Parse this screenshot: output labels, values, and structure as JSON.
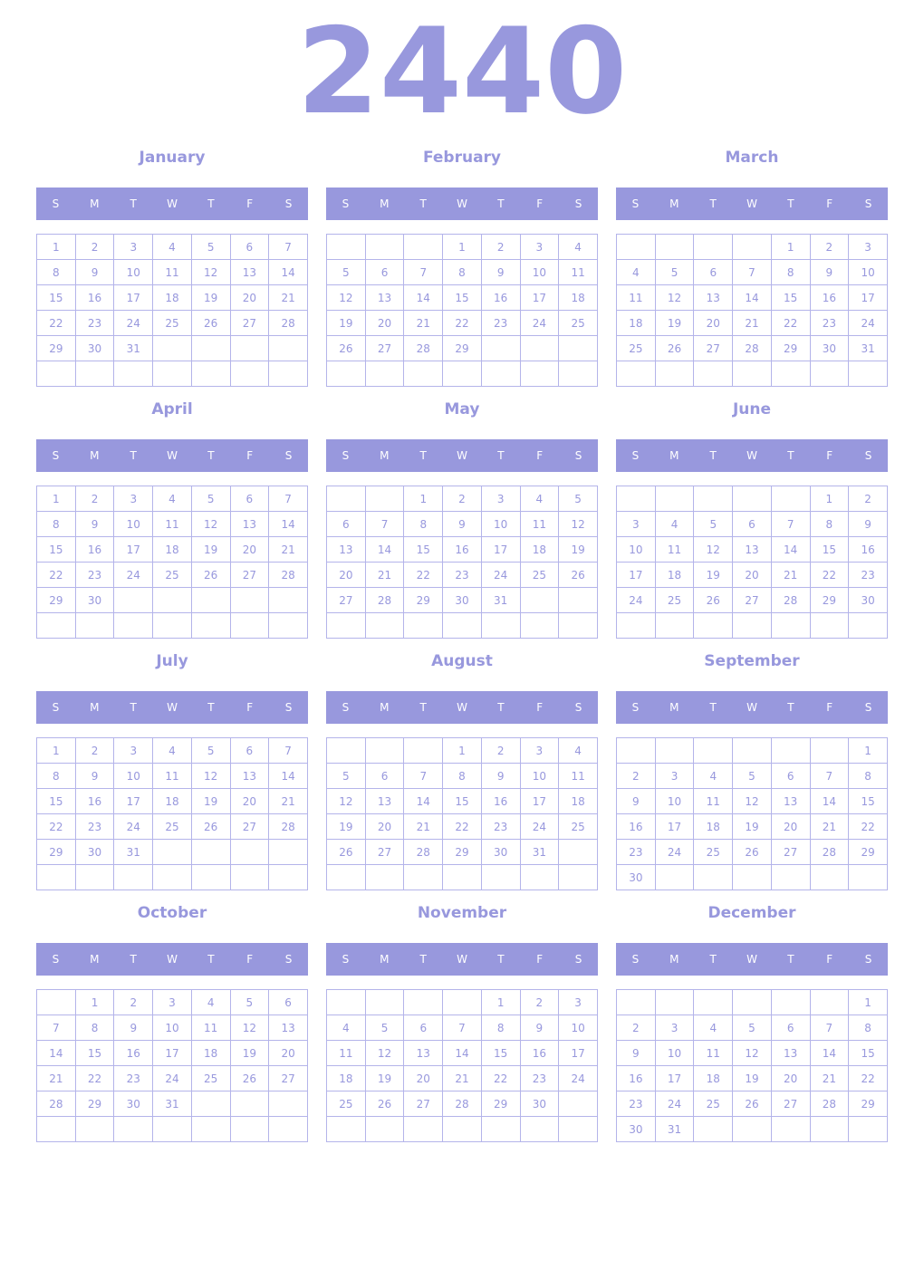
{
  "year": "2440",
  "weekday_labels": [
    "S",
    "M",
    "T",
    "W",
    "T",
    "F",
    "S"
  ],
  "colors": {
    "accent": "#9898dd",
    "border": "#b4b4ea",
    "header_text": "#ffffff"
  },
  "months": [
    {
      "name": "January",
      "weeks": [
        [
          1,
          2,
          3,
          4,
          5,
          6,
          7
        ],
        [
          8,
          9,
          10,
          11,
          12,
          13,
          14
        ],
        [
          15,
          16,
          17,
          18,
          19,
          20,
          21
        ],
        [
          22,
          23,
          24,
          25,
          26,
          27,
          28
        ],
        [
          29,
          30,
          31,
          null,
          null,
          null,
          null
        ],
        [
          null,
          null,
          null,
          null,
          null,
          null,
          null
        ]
      ]
    },
    {
      "name": "February",
      "weeks": [
        [
          null,
          null,
          null,
          1,
          2,
          3,
          4
        ],
        [
          5,
          6,
          7,
          8,
          9,
          10,
          11
        ],
        [
          12,
          13,
          14,
          15,
          16,
          17,
          18
        ],
        [
          19,
          20,
          21,
          22,
          23,
          24,
          25
        ],
        [
          26,
          27,
          28,
          29,
          null,
          null,
          null
        ],
        [
          null,
          null,
          null,
          null,
          null,
          null,
          null
        ]
      ]
    },
    {
      "name": "March",
      "weeks": [
        [
          null,
          null,
          null,
          null,
          1,
          2,
          3
        ],
        [
          4,
          5,
          6,
          7,
          8,
          9,
          10
        ],
        [
          11,
          12,
          13,
          14,
          15,
          16,
          17
        ],
        [
          18,
          19,
          20,
          21,
          22,
          23,
          24
        ],
        [
          25,
          26,
          27,
          28,
          29,
          30,
          31
        ],
        [
          null,
          null,
          null,
          null,
          null,
          null,
          null
        ]
      ]
    },
    {
      "name": "April",
      "weeks": [
        [
          1,
          2,
          3,
          4,
          5,
          6,
          7
        ],
        [
          8,
          9,
          10,
          11,
          12,
          13,
          14
        ],
        [
          15,
          16,
          17,
          18,
          19,
          20,
          21
        ],
        [
          22,
          23,
          24,
          25,
          26,
          27,
          28
        ],
        [
          29,
          30,
          null,
          null,
          null,
          null,
          null
        ],
        [
          null,
          null,
          null,
          null,
          null,
          null,
          null
        ]
      ]
    },
    {
      "name": "May",
      "weeks": [
        [
          null,
          null,
          1,
          2,
          3,
          4,
          5
        ],
        [
          6,
          7,
          8,
          9,
          10,
          11,
          12
        ],
        [
          13,
          14,
          15,
          16,
          17,
          18,
          19
        ],
        [
          20,
          21,
          22,
          23,
          24,
          25,
          26
        ],
        [
          27,
          28,
          29,
          30,
          31,
          null,
          null
        ],
        [
          null,
          null,
          null,
          null,
          null,
          null,
          null
        ]
      ]
    },
    {
      "name": "June",
      "weeks": [
        [
          null,
          null,
          null,
          null,
          null,
          1,
          2
        ],
        [
          3,
          4,
          5,
          6,
          7,
          8,
          9
        ],
        [
          10,
          11,
          12,
          13,
          14,
          15,
          16
        ],
        [
          17,
          18,
          19,
          20,
          21,
          22,
          23
        ],
        [
          24,
          25,
          26,
          27,
          28,
          29,
          30
        ],
        [
          null,
          null,
          null,
          null,
          null,
          null,
          null
        ]
      ]
    },
    {
      "name": "July",
      "weeks": [
        [
          1,
          2,
          3,
          4,
          5,
          6,
          7
        ],
        [
          8,
          9,
          10,
          11,
          12,
          13,
          14
        ],
        [
          15,
          16,
          17,
          18,
          19,
          20,
          21
        ],
        [
          22,
          23,
          24,
          25,
          26,
          27,
          28
        ],
        [
          29,
          30,
          31,
          null,
          null,
          null,
          null
        ],
        [
          null,
          null,
          null,
          null,
          null,
          null,
          null
        ]
      ]
    },
    {
      "name": "August",
      "weeks": [
        [
          null,
          null,
          null,
          1,
          2,
          3,
          4
        ],
        [
          5,
          6,
          7,
          8,
          9,
          10,
          11
        ],
        [
          12,
          13,
          14,
          15,
          16,
          17,
          18
        ],
        [
          19,
          20,
          21,
          22,
          23,
          24,
          25
        ],
        [
          26,
          27,
          28,
          29,
          30,
          31,
          null
        ],
        [
          null,
          null,
          null,
          null,
          null,
          null,
          null
        ]
      ]
    },
    {
      "name": "September",
      "weeks": [
        [
          null,
          null,
          null,
          null,
          null,
          null,
          1
        ],
        [
          2,
          3,
          4,
          5,
          6,
          7,
          8
        ],
        [
          9,
          10,
          11,
          12,
          13,
          14,
          15
        ],
        [
          16,
          17,
          18,
          19,
          20,
          21,
          22
        ],
        [
          23,
          24,
          25,
          26,
          27,
          28,
          29
        ],
        [
          30,
          null,
          null,
          null,
          null,
          null,
          null
        ]
      ]
    },
    {
      "name": "October",
      "weeks": [
        [
          null,
          1,
          2,
          3,
          4,
          5,
          6
        ],
        [
          7,
          8,
          9,
          10,
          11,
          12,
          13
        ],
        [
          14,
          15,
          16,
          17,
          18,
          19,
          20
        ],
        [
          21,
          22,
          23,
          24,
          25,
          26,
          27
        ],
        [
          28,
          29,
          30,
          31,
          null,
          null,
          null
        ],
        [
          null,
          null,
          null,
          null,
          null,
          null,
          null
        ]
      ]
    },
    {
      "name": "November",
      "weeks": [
        [
          null,
          null,
          null,
          null,
          1,
          2,
          3
        ],
        [
          4,
          5,
          6,
          7,
          8,
          9,
          10
        ],
        [
          11,
          12,
          13,
          14,
          15,
          16,
          17
        ],
        [
          18,
          19,
          20,
          21,
          22,
          23,
          24
        ],
        [
          25,
          26,
          27,
          28,
          29,
          30,
          null
        ],
        [
          null,
          null,
          null,
          null,
          null,
          null,
          null
        ]
      ]
    },
    {
      "name": "December",
      "weeks": [
        [
          null,
          null,
          null,
          null,
          null,
          null,
          1
        ],
        [
          2,
          3,
          4,
          5,
          6,
          7,
          8
        ],
        [
          9,
          10,
          11,
          12,
          13,
          14,
          15
        ],
        [
          16,
          17,
          18,
          19,
          20,
          21,
          22
        ],
        [
          23,
          24,
          25,
          26,
          27,
          28,
          29
        ],
        [
          30,
          31,
          null,
          null,
          null,
          null,
          null
        ]
      ]
    }
  ]
}
